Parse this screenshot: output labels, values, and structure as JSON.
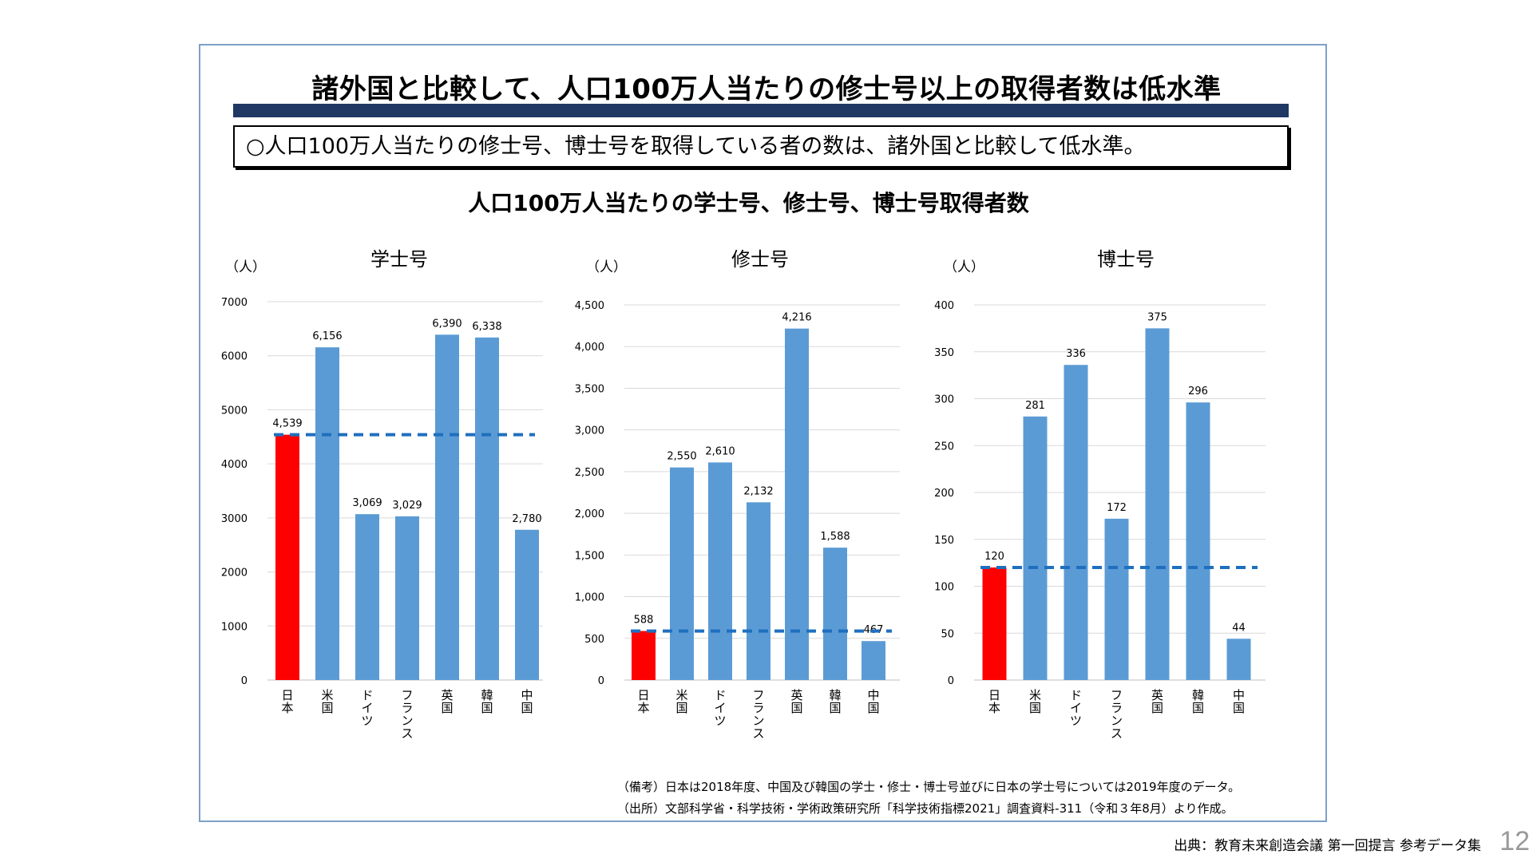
{
  "slide": {
    "title": "諸外国と比較して、人口100万人当たりの修士号以上の取得者数は低水準",
    "summary": "○人口100万人当たりの修士号、博士号を取得している者の数は、諸外国と比較して低水準。",
    "charts_title": "人口100万人当たりの学士号、修士号、博士号取得者数",
    "note_remarks": "（備考）日本は2018年度、中国及び韓国の学士・修士・博士号並びに日本の学士号については2019年度のデータ。",
    "note_source": "（出所）文部科学省・科学技術・学術政策研究所「科学技術指標2021」調査資料-311（令和３年8月）より作成。",
    "footer_source": "出典：教育未来創造会議 第一回提言 参考データ集",
    "page_number": "12"
  },
  "colors": {
    "japan": "#ff0000",
    "bars": "#5b9bd5",
    "reference_line": "#1f6fbf",
    "title_bar": "#1f3864",
    "grid": "#d9d9d9"
  },
  "chart_data": [
    {
      "type": "bar",
      "title": "学士号",
      "unit": "（人）",
      "categories": [
        "日本",
        "米国",
        "ドイツ",
        "フランス",
        "英国",
        "韓国",
        "中国"
      ],
      "values": [
        4539,
        6156,
        3069,
        3029,
        6390,
        6338,
        2780
      ],
      "value_labels": [
        "4,539",
        "6,156",
        "3,069",
        "3,029",
        "6,390",
        "6,338",
        "2,780"
      ],
      "ylim": [
        0,
        7000
      ],
      "yticks": [
        0,
        1000,
        2000,
        3000,
        4000,
        5000,
        6000,
        7000
      ],
      "ytick_labels": [
        "0",
        "1000",
        "2000",
        "3000",
        "4000",
        "5000",
        "6000",
        "7000"
      ],
      "reference_line": 4539,
      "highlight": "日本"
    },
    {
      "type": "bar",
      "title": "修士号",
      "unit": "（人）",
      "categories": [
        "日本",
        "米国",
        "ドイツ",
        "フランス",
        "英国",
        "韓国",
        "中国"
      ],
      "values": [
        588,
        2550,
        2610,
        2132,
        4216,
        1588,
        467
      ],
      "value_labels": [
        "588",
        "2,550",
        "2,610",
        "2,132",
        "4,216",
        "1,588",
        "467"
      ],
      "ylim": [
        0,
        4500
      ],
      "yticks": [
        0,
        500,
        1000,
        1500,
        2000,
        2500,
        3000,
        3500,
        4000,
        4500
      ],
      "ytick_labels": [
        "0",
        "500",
        "1,000",
        "1,500",
        "2,000",
        "2,500",
        "3,000",
        "3,500",
        "4,000",
        "4,500"
      ],
      "reference_line": 588,
      "highlight": "日本"
    },
    {
      "type": "bar",
      "title": "博士号",
      "unit": "（人）",
      "categories": [
        "日本",
        "米国",
        "ドイツ",
        "フランス",
        "英国",
        "韓国",
        "中国"
      ],
      "values": [
        120,
        281,
        336,
        172,
        375,
        296,
        44
      ],
      "value_labels": [
        "120",
        "281",
        "336",
        "172",
        "375",
        "296",
        "44"
      ],
      "ylim": [
        0,
        400
      ],
      "yticks": [
        0,
        50,
        100,
        150,
        200,
        250,
        300,
        350,
        400
      ],
      "ytick_labels": [
        "0",
        "50",
        "100",
        "150",
        "200",
        "250",
        "300",
        "350",
        "400"
      ],
      "reference_line": 120,
      "highlight": "日本"
    }
  ]
}
